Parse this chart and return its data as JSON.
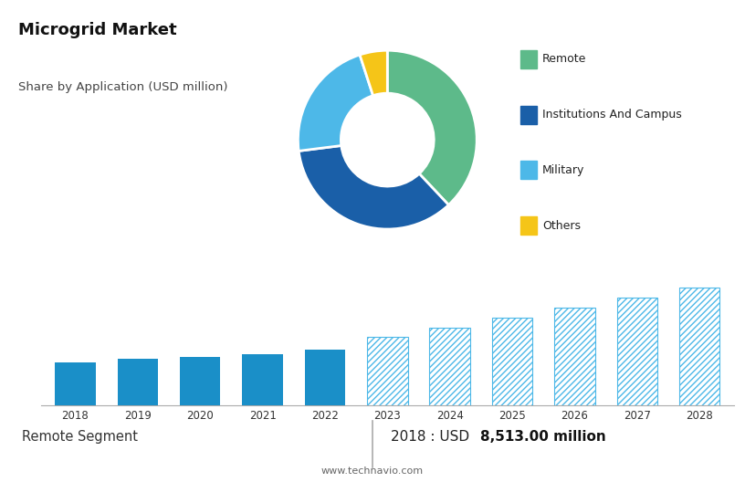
{
  "title": "Microgrid Market",
  "subtitle": "Share by Application (USD million)",
  "top_bg_color": "#dedede",
  "bottom_bg_color": "#ffffff",
  "footer_bg_color": "#e8e8e8",
  "pie_labels": [
    "Remote",
    "Institutions And Campus",
    "Military",
    "Others"
  ],
  "pie_values": [
    38,
    35,
    22,
    5
  ],
  "pie_colors": [
    "#5dba8a",
    "#1a5fa8",
    "#4db8e8",
    "#f5c518"
  ],
  "bar_years": [
    2018,
    2019,
    2020,
    2021,
    2022,
    2023,
    2024,
    2025,
    2026,
    2027,
    2028
  ],
  "bar_values": [
    8513,
    9200,
    9600,
    10200,
    11000,
    13500,
    15500,
    17500,
    19500,
    21500,
    23500
  ],
  "bar_solid_color": "#1a8fc8",
  "bar_hatch_color": "#4db8e8",
  "grid_color": "#cccccc",
  "footer_left": "Remote Segment",
  "footer_right_plain": "2018 : USD ",
  "footer_right_bold": "8,513.00 million",
  "footer_url": "www.technavio.com",
  "separator_year": 2022,
  "ylim": [
    0,
    26000
  ],
  "yticks": [
    0,
    5000,
    10000,
    15000,
    20000,
    25000
  ]
}
